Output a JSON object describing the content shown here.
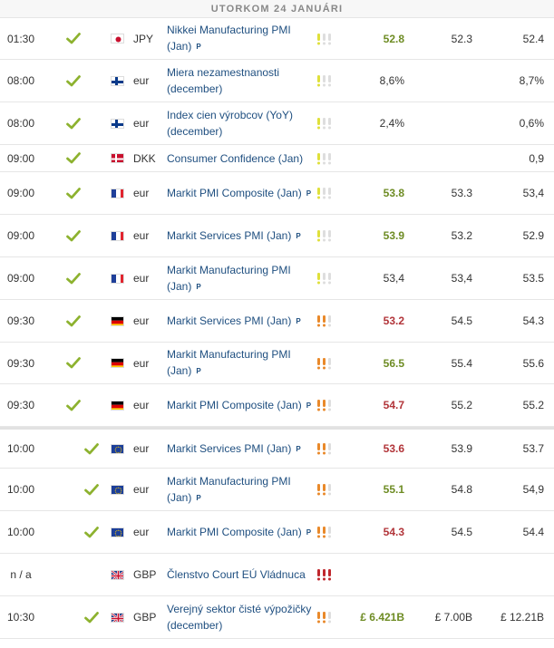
{
  "date_header": "UTORKOM 24 JANUÁRI",
  "rows": [
    {
      "time": "01:30",
      "flag": "japan-flag-icon",
      "currency": "JPY",
      "event": "Nikkei Manufacturing PMI (Jan)",
      "badge": "P",
      "importance": "medium",
      "actual": "52.8",
      "actual_class": "act-up",
      "forecast": "52.3",
      "previous": "52.4",
      "indent": false
    },
    {
      "time": "08:00",
      "flag": "finland-flag-icon",
      "currency": "eur",
      "event": "Miera nezamestnanosti (december)",
      "badge": "",
      "importance": "medium",
      "actual": "8,6%",
      "actual_class": "act-neutral",
      "forecast": "",
      "previous": "8,7%",
      "indent": false
    },
    {
      "time": "08:00",
      "flag": "finland-flag-icon",
      "currency": "eur",
      "event": "Index cien výrobcov (YoY) (december)",
      "badge": "",
      "importance": "medium",
      "actual": "2,4%",
      "actual_class": "act-neutral",
      "forecast": "",
      "previous": "0,6%",
      "indent": false
    },
    {
      "time": "09:00",
      "flag": "denmark-flag-icon",
      "currency": "DKK",
      "event": "Consumer Confidence (Jan)",
      "badge": "",
      "importance": "medium",
      "actual": "",
      "actual_class": "act-neutral",
      "forecast": "",
      "previous": "0,9",
      "indent": false
    },
    {
      "time": "09:00",
      "flag": "france-flag-icon",
      "currency": "eur",
      "event": "Markit PMI Composite (Jan)",
      "badge": "P",
      "importance": "medium",
      "actual": "53.8",
      "actual_class": "act-up",
      "forecast": "53.3",
      "previous": "53,4",
      "indent": false
    },
    {
      "time": "09:00",
      "flag": "france-flag-icon",
      "currency": "eur",
      "event": "Markit Services PMI (Jan)",
      "badge": "P",
      "importance": "medium",
      "actual": "53.9",
      "actual_class": "act-up",
      "forecast": "53.2",
      "previous": "52.9",
      "indent": false
    },
    {
      "time": "09:00",
      "flag": "france-flag-icon",
      "currency": "eur",
      "event": "Markit Manufacturing PMI (Jan)",
      "badge": "P",
      "importance": "medium",
      "actual": "53,4",
      "actual_class": "act-neutral",
      "forecast": "53,4",
      "previous": "53.5",
      "indent": false
    },
    {
      "time": "09:30",
      "flag": "germany-flag-icon",
      "currency": "eur",
      "event": "Markit Services PMI (Jan)",
      "badge": "P",
      "importance": "high",
      "actual": "53.2",
      "actual_class": "act-down",
      "forecast": "54.5",
      "previous": "54.3",
      "indent": false
    },
    {
      "time": "09:30",
      "flag": "germany-flag-icon",
      "currency": "eur",
      "event": "Markit Manufacturing PMI (Jan)",
      "badge": "P",
      "importance": "high",
      "actual": "56.5",
      "actual_class": "act-up",
      "forecast": "55.4",
      "previous": "55.6",
      "indent": false
    },
    {
      "time": "09:30",
      "flag": "germany-flag-icon",
      "currency": "eur",
      "event": "Markit PMI Composite (Jan)",
      "badge": "P",
      "importance": "high",
      "actual": "54.7",
      "actual_class": "act-down",
      "forecast": "55.2",
      "previous": "55.2",
      "indent": false
    },
    {
      "time": "10:00",
      "flag": "eu-flag-icon",
      "currency": "eur",
      "event": "Markit Services PMI (Jan)",
      "badge": "P",
      "importance": "high",
      "actual": "53.6",
      "actual_class": "act-down",
      "forecast": "53.9",
      "previous": "53.7",
      "indent": true
    },
    {
      "time": "10:00",
      "flag": "eu-flag-icon",
      "currency": "eur",
      "event": "Markit Manufacturing PMI (Jan)",
      "badge": "P",
      "importance": "high",
      "actual": "55.1",
      "actual_class": "act-up",
      "forecast": "54.8",
      "previous": "54,9",
      "indent": true
    },
    {
      "time": "10:00",
      "flag": "eu-flag-icon",
      "currency": "eur",
      "event": "Markit PMI Composite (Jan)",
      "badge": "P",
      "importance": "high",
      "actual": "54.3",
      "actual_class": "act-down",
      "forecast": "54.5",
      "previous": "54.4",
      "indent": true
    },
    {
      "time": "n / a",
      "flag": "uk-flag-icon",
      "currency": "GBP",
      "event": "Členstvo Court EÚ Vládnuca",
      "badge": "",
      "importance": "critical",
      "actual": "",
      "actual_class": "act-neutral",
      "forecast": "",
      "previous": "",
      "indent": false,
      "no_check": true
    },
    {
      "time": "10:30",
      "flag": "uk-flag-icon",
      "currency": "GBP",
      "event": "Verejný sektor čisté výpožičky (december)",
      "badge": "",
      "importance": "high",
      "actual": "£ 6.421B",
      "actual_class": "act-up",
      "forecast": "£ 7.00B",
      "previous": "£ 12.21B",
      "indent": true
    }
  ],
  "colors": {
    "check": "#8db22f",
    "importance_medium": "#dfe03a",
    "importance_high": "#e9892a",
    "importance_critical": "#c0272d",
    "importance_off": "#dedede"
  }
}
